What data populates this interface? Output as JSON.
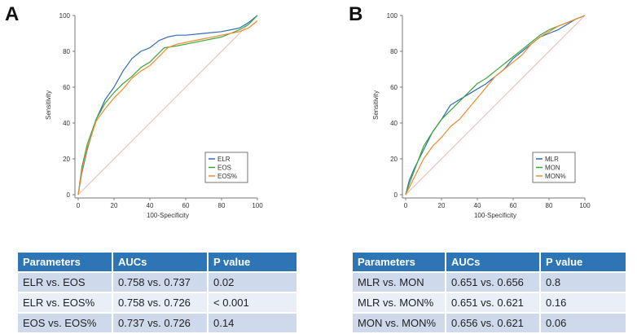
{
  "chart_data": [
    {
      "type": "line",
      "panel": "A",
      "xlabel": "100-Specificity",
      "ylabel": "Sensitivity",
      "xlim": [
        0,
        100
      ],
      "ylim": [
        0,
        100
      ],
      "xticks": [
        0,
        20,
        40,
        60,
        80,
        100
      ],
      "yticks": [
        0,
        20,
        40,
        60,
        80,
        100
      ],
      "legend_position": "bottom-right",
      "reference_line": {
        "x": [
          0,
          100
        ],
        "y": [
          0,
          100
        ],
        "color": "#f0b8b8"
      },
      "series": [
        {
          "name": "ELR",
          "color": "#2f6db5",
          "x": [
            0,
            2,
            5,
            10,
            15,
            20,
            25,
            30,
            35,
            40,
            45,
            50,
            55,
            60,
            70,
            80,
            85,
            90,
            95,
            100
          ],
          "y": [
            0,
            12,
            25,
            42,
            53,
            60,
            69,
            76,
            80,
            82,
            86,
            88,
            89,
            89,
            90,
            91,
            92,
            93,
            96,
            100
          ]
        },
        {
          "name": "EOS",
          "color": "#3aa63a",
          "x": [
            0,
            2,
            5,
            10,
            15,
            20,
            25,
            30,
            35,
            40,
            45,
            48,
            55,
            60,
            70,
            80,
            85,
            90,
            95,
            100
          ],
          "y": [
            0,
            15,
            28,
            42,
            51,
            57,
            62,
            66,
            71,
            74,
            79,
            82,
            83,
            84,
            86,
            88,
            90,
            92,
            95,
            100
          ]
        },
        {
          "name": "EOS%",
          "color": "#f08a2e",
          "x": [
            0,
            2,
            5,
            10,
            15,
            20,
            25,
            30,
            35,
            40,
            45,
            50,
            55,
            60,
            70,
            80,
            85,
            90,
            95,
            100
          ],
          "y": [
            0,
            13,
            26,
            41,
            48,
            54,
            59,
            65,
            69,
            72,
            77,
            82,
            84,
            85,
            87,
            89,
            90,
            91,
            93,
            97
          ]
        }
      ]
    },
    {
      "type": "line",
      "panel": "B",
      "xlabel": "100-Specificity",
      "ylabel": "Sensitivity",
      "xlim": [
        0,
        100
      ],
      "ylim": [
        0,
        100
      ],
      "xticks": [
        0,
        20,
        40,
        60,
        80,
        100
      ],
      "yticks": [
        0,
        20,
        40,
        60,
        80,
        100
      ],
      "legend_position": "bottom-right",
      "reference_line": {
        "x": [
          0,
          100
        ],
        "y": [
          0,
          100
        ],
        "color": "#f0b8b8"
      },
      "series": [
        {
          "name": "MLR",
          "color": "#2f6db5",
          "x": [
            0,
            2,
            5,
            10,
            15,
            20,
            25,
            30,
            35,
            40,
            45,
            50,
            55,
            60,
            65,
            70,
            75,
            80,
            85,
            90,
            95,
            100
          ],
          "y": [
            0,
            8,
            15,
            25,
            35,
            42,
            50,
            53,
            56,
            59,
            62,
            66,
            70,
            76,
            80,
            84,
            88,
            90,
            92,
            95,
            98,
            100
          ]
        },
        {
          "name": "MON",
          "color": "#3aa63a",
          "x": [
            0,
            2,
            5,
            10,
            15,
            20,
            25,
            30,
            35,
            40,
            45,
            50,
            55,
            60,
            65,
            70,
            75,
            80,
            85,
            90,
            95,
            100
          ],
          "y": [
            0,
            6,
            14,
            27,
            35,
            42,
            47,
            52,
            57,
            62,
            65,
            69,
            73,
            77,
            81,
            85,
            89,
            92,
            94,
            96,
            98,
            100
          ]
        },
        {
          "name": "MON%",
          "color": "#f08a2e",
          "x": [
            0,
            2,
            5,
            10,
            15,
            20,
            25,
            30,
            35,
            40,
            45,
            50,
            55,
            60,
            65,
            70,
            75,
            80,
            85,
            90,
            95,
            100
          ],
          "y": [
            0,
            4,
            10,
            20,
            27,
            32,
            38,
            42,
            48,
            54,
            60,
            66,
            70,
            74,
            78,
            84,
            88,
            91,
            94,
            96,
            98,
            100
          ]
        }
      ]
    }
  ],
  "tables": [
    {
      "headers": [
        "Parameters",
        "AUCs",
        "P value"
      ],
      "rows": [
        [
          "ELR vs. EOS",
          "0.758 vs. 0.737",
          "0.02"
        ],
        [
          "ELR vs. EOS%",
          "0.758 vs. 0.726",
          "< 0.001"
        ],
        [
          "EOS vs. EOS%",
          "0.737 vs. 0.726",
          "0.14"
        ]
      ]
    },
    {
      "headers": [
        "Parameters",
        "AUCs",
        "P value"
      ],
      "rows": [
        [
          "MLR vs. MON",
          "0.651 vs. 0.656",
          "0.8"
        ],
        [
          "MLR vs. MON%",
          "0.651 vs. 0.621",
          "0.16"
        ],
        [
          "MON vs. MON%",
          "0.656 vs. 0.621",
          "0.06"
        ]
      ]
    }
  ]
}
